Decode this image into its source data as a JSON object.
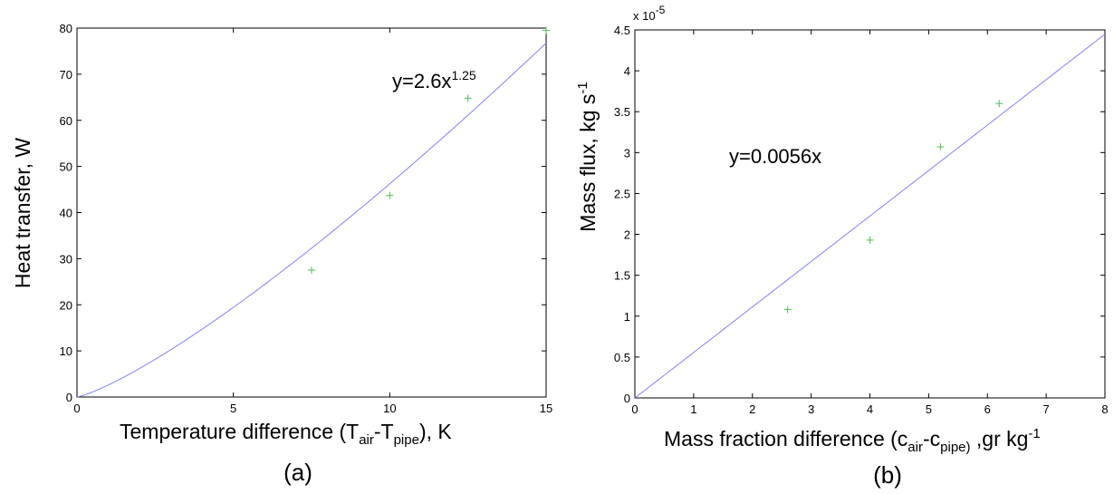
{
  "chart_data": [
    {
      "type": "scatter",
      "panel_label": "(a)",
      "xlabel": {
        "main": "Temperature difference (T",
        "sub1": "air",
        "mid": "-T",
        "sub2": "pipe",
        "tail": "), K"
      },
      "ylabel": "Heat transfer, W",
      "xlim": [
        0,
        15
      ],
      "ylim": [
        0,
        80
      ],
      "xticks": [
        0,
        5,
        10,
        15
      ],
      "yticks": [
        0,
        10,
        20,
        30,
        40,
        50,
        60,
        70,
        80
      ],
      "equation": {
        "base": "y=2.6x",
        "exponent": "1.25"
      },
      "fit": {
        "form": "power",
        "coef": 2.6,
        "power": 1.25,
        "xrange": [
          0,
          15
        ]
      },
      "series": [
        {
          "marker": "+",
          "x": [
            7.5,
            10,
            12.5,
            15
          ],
          "y": [
            27.5,
            43.7,
            64.8,
            79.5
          ]
        }
      ],
      "grid": false,
      "colors": {
        "fit": "#8080ff",
        "points": "#50c050",
        "axes": "#000000"
      }
    },
    {
      "type": "scatter",
      "panel_label": "(b)",
      "xlabel": {
        "main": "Mass fraction difference (c",
        "sub1": "air",
        "mid": "-c",
        "sub2": "pipe)",
        "tail": " ,gr kg",
        "sup": "-1"
      },
      "ylabel": {
        "main": "Mass flux, kg s",
        "sup": "-1"
      },
      "xlim": [
        0,
        8
      ],
      "ylim": [
        0,
        4.5
      ],
      "y_multiplier": {
        "prefix": "x 10",
        "exponent": "-5"
      },
      "xticks": [
        0,
        1,
        2,
        3,
        4,
        5,
        6,
        7,
        8
      ],
      "yticks": [
        0,
        0.5,
        1,
        1.5,
        2,
        2.5,
        3,
        3.5,
        4,
        4.5
      ],
      "equation": {
        "base": "y=0.0056x"
      },
      "fit": {
        "form": "linear",
        "slope": 0.556,
        "xrange": [
          0,
          8
        ]
      },
      "series": [
        {
          "marker": "+",
          "x": [
            2.6,
            4,
            5.2,
            6.2
          ],
          "y": [
            1.08,
            1.93,
            3.07,
            3.6
          ]
        }
      ],
      "grid": false,
      "colors": {
        "fit": "#8080ff",
        "points": "#50c050",
        "axes": "#000000"
      }
    }
  ]
}
